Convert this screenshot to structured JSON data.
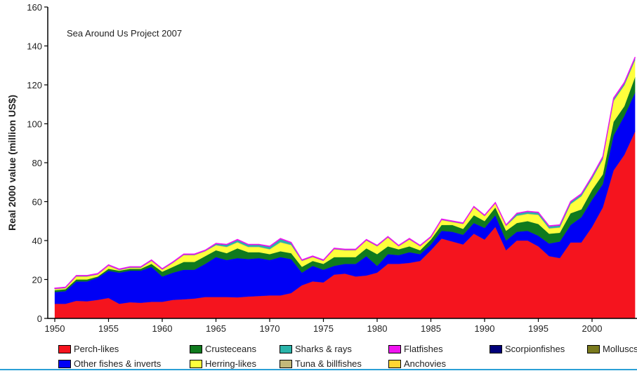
{
  "chart_data": {
    "type": "area",
    "stacked": true,
    "title": "Sea Around Us Project 2007",
    "xlabel": "",
    "ylabel": "Real 2000 value (million US$)",
    "xlim": [
      1950,
      2004
    ],
    "ylim": [
      0,
      160
    ],
    "xticks": [
      1950,
      1955,
      1960,
      1965,
      1970,
      1975,
      1980,
      1985,
      1990,
      1995,
      2000
    ],
    "yticks": [
      0,
      20,
      40,
      60,
      80,
      100,
      120,
      140,
      160
    ],
    "legend_position": "bottom",
    "x_start": 1950,
    "series": [
      {
        "name": "Perch-likes",
        "color": "#f5141e",
        "values": [
          7.5,
          7.5,
          9,
          8.8,
          9.5,
          10.5,
          7.5,
          8.3,
          8,
          8.5,
          8.5,
          9.5,
          9.8,
          10.2,
          11,
          11,
          11,
          10.8,
          11.2,
          11.5,
          11.8,
          11.8,
          13,
          17,
          19,
          18.5,
          22.5,
          23,
          21.5,
          22,
          23.5,
          28,
          28,
          28.5,
          29.5,
          35,
          41,
          39.5,
          38,
          43.5,
          40.5,
          47,
          35,
          40,
          40,
          37,
          32,
          31,
          39,
          39,
          47,
          57,
          76,
          84,
          96
        ]
      },
      {
        "name": "Other fishes & inverts",
        "color": "#0000f5",
        "values": [
          6,
          6.5,
          10,
          10.2,
          11.5,
          14,
          16,
          16.2,
          16.5,
          18,
          13,
          14,
          15.2,
          14.8,
          17,
          20.5,
          19,
          20.2,
          19.3,
          19.5,
          18.2,
          19.7,
          17.5,
          6.5,
          8,
          6.5,
          4.5,
          5,
          6.5,
          10,
          3.5,
          5,
          4.5,
          5.5,
          3.5,
          3,
          4,
          5,
          5,
          5.5,
          6,
          6,
          5,
          4.5,
          5,
          5.5,
          6.5,
          8.5,
          9,
          13,
          14,
          12,
          18,
          20,
          20
        ]
      },
      {
        "name": "Crusteceans",
        "color": "#0f7a1e",
        "values": [
          1,
          1,
          1,
          1,
          0.5,
          1,
          1,
          1,
          1,
          1.5,
          2.5,
          3,
          4,
          4,
          4,
          3.5,
          3.5,
          5,
          3.5,
          3,
          3,
          3,
          3,
          3,
          2.5,
          3,
          4.5,
          3.5,
          3.5,
          4,
          6,
          4,
          3,
          3,
          2,
          2.5,
          3,
          3.5,
          3,
          4,
          3.5,
          4,
          5,
          4.5,
          5,
          6,
          5,
          4.5,
          6,
          4,
          5,
          5,
          7,
          5,
          8
        ]
      },
      {
        "name": "Herring-likes",
        "color": "#ffff3c",
        "values": [
          0.4,
          0.4,
          1.4,
          1.4,
          0.9,
          1.4,
          0.2,
          0.4,
          0.4,
          1.4,
          0.9,
          1.9,
          3.4,
          3.4,
          2.4,
          2.5,
          3.1,
          3.0,
          2.6,
          2.6,
          2.4,
          4.5,
          4.1,
          2.9,
          1.9,
          1.4,
          3.9,
          3.4,
          3.4,
          3.9,
          3.9,
          4.4,
          1.4,
          3.4,
          1.9,
          0.9,
          2.4,
          1.4,
          2.4,
          3.9,
          2.4,
          1.9,
          2.4,
          3.6,
          3.6,
          4.6,
          2.6,
          2.6,
          4.6,
          6.6,
          5.6,
          7.6,
          10.6,
          10.6,
          8.6
        ]
      },
      {
        "name": "Anchovies",
        "color": "#ffd532",
        "values": [
          0.1,
          0.1,
          0.1,
          0.1,
          0.1,
          0.1,
          0.1,
          0.1,
          0.1,
          0.1,
          0.1,
          0.1,
          0.1,
          0.1,
          0.1,
          0.1,
          0.1,
          0.1,
          0.1,
          0.1,
          0.1,
          0.1,
          0.1,
          0.1,
          0.1,
          0.1,
          0.1,
          0.1,
          0.1,
          0.1,
          0.1,
          0.1,
          0.1,
          0.1,
          0.1,
          0.1,
          0.1,
          0.1,
          0.1,
          0.1,
          0.1,
          0.1,
          0.1,
          0.1,
          0.1,
          0.1,
          0.1,
          0.1,
          0.1,
          0.1,
          0.1,
          0.1,
          0.1,
          0.1,
          0.1
        ]
      },
      {
        "name": "Tuna & billfishes",
        "color": "#c2b87a",
        "values": [
          0.1,
          0.1,
          0.1,
          0.1,
          0.1,
          0.1,
          0.1,
          0.1,
          0.1,
          0.1,
          0.1,
          0.1,
          0.1,
          0.1,
          0.1,
          0.1,
          0.1,
          0.1,
          0.1,
          0.1,
          0.1,
          0.1,
          0.1,
          0.1,
          0.1,
          0.1,
          0.1,
          0.1,
          0.1,
          0.1,
          0.1,
          0.1,
          0.1,
          0.1,
          0.1,
          0.1,
          0.1,
          0.1,
          0.1,
          0.1,
          0.1,
          0.1,
          0.1,
          0.1,
          0.1,
          0.1,
          0.1,
          0.1,
          0.1,
          0.1,
          0.1,
          0.1,
          0.1,
          0.1,
          0.1
        ]
      },
      {
        "name": "Sharks & rays",
        "color": "#2ab4aa",
        "values": [
          0.2,
          0.2,
          0.2,
          0.2,
          0.2,
          0.2,
          0.2,
          0.2,
          0.2,
          0.2,
          0.2,
          0.2,
          0.2,
          0.2,
          0.2,
          0.6,
          1.0,
          1.1,
          1.0,
          1.0,
          1.2,
          1.6,
          1.0,
          0.2,
          0.2,
          0.2,
          0.2,
          0.2,
          0.2,
          0.2,
          0.2,
          0.2,
          0.2,
          0.2,
          0.2,
          0.2,
          0.2,
          0.2,
          0.2,
          0.2,
          0.2,
          0.2,
          0.2,
          1.0,
          1.0,
          1.0,
          1.0,
          1.0,
          1.0,
          1.0,
          1.0,
          1.0,
          1.0,
          1.0,
          1.0
        ]
      },
      {
        "name": "Scorpionfishes",
        "color": "#00007a",
        "values": [
          0.05,
          0.05,
          0.05,
          0.05,
          0.05,
          0.05,
          0.05,
          0.05,
          0.05,
          0.05,
          0.05,
          0.05,
          0.05,
          0.05,
          0.05,
          0.05,
          0.05,
          0.05,
          0.05,
          0.05,
          0.05,
          0.05,
          0.05,
          0.05,
          0.05,
          0.05,
          0.05,
          0.05,
          0.05,
          0.05,
          0.05,
          0.05,
          0.05,
          0.05,
          0.05,
          0.05,
          0.05,
          0.05,
          0.05,
          0.05,
          0.05,
          0.05,
          0.05,
          0.05,
          0.05,
          0.05,
          0.05,
          0.05,
          0.05,
          0.05,
          0.05,
          0.05,
          0.05,
          0.05,
          0.05
        ]
      },
      {
        "name": "Molluscs",
        "color": "#7a7a1e",
        "values": [
          0.05,
          0.05,
          0.05,
          0.05,
          0.05,
          0.05,
          0.05,
          0.05,
          0.05,
          0.05,
          0.05,
          0.05,
          0.05,
          0.05,
          0.05,
          0.05,
          0.05,
          0.05,
          0.05,
          0.05,
          0.05,
          0.05,
          0.05,
          0.05,
          0.05,
          0.05,
          0.05,
          0.05,
          0.05,
          0.05,
          0.05,
          0.05,
          0.05,
          0.05,
          0.05,
          0.05,
          0.05,
          0.05,
          0.05,
          0.05,
          0.05,
          0.05,
          0.05,
          0.05,
          0.05,
          0.05,
          0.05,
          0.05,
          0.05,
          0.05,
          0.05,
          0.05,
          0.05,
          0.05,
          0.05
        ]
      },
      {
        "name": "Flatfishes",
        "color": "#f014f0",
        "values": [
          0.2,
          0.2,
          0.2,
          0.2,
          0.2,
          0.2,
          0.2,
          0.2,
          0.2,
          0.2,
          0.2,
          0.2,
          0.2,
          0.2,
          0.2,
          0.2,
          0.2,
          0.2,
          0.2,
          0.2,
          0.2,
          0.2,
          0.2,
          0.2,
          0.2,
          0.2,
          0.2,
          0.2,
          0.2,
          0.2,
          0.2,
          0.2,
          0.2,
          0.2,
          0.2,
          0.2,
          0.2,
          0.2,
          0.2,
          0.2,
          0.2,
          0.2,
          0.2,
          0.2,
          0.2,
          0.2,
          0.2,
          0.2,
          0.2,
          0.2,
          0.3,
          0.3,
          0.4,
          0.4,
          0.4
        ]
      }
    ],
    "legend_order": [
      "Perch-likes",
      "Crusteceans",
      "Sharks & rays",
      "Flatfishes",
      "Scorpionfishes",
      "Molluscs",
      "Other fishes & inverts",
      "Herring-likes",
      "Tuna & billfishes",
      "Anchovies"
    ]
  }
}
